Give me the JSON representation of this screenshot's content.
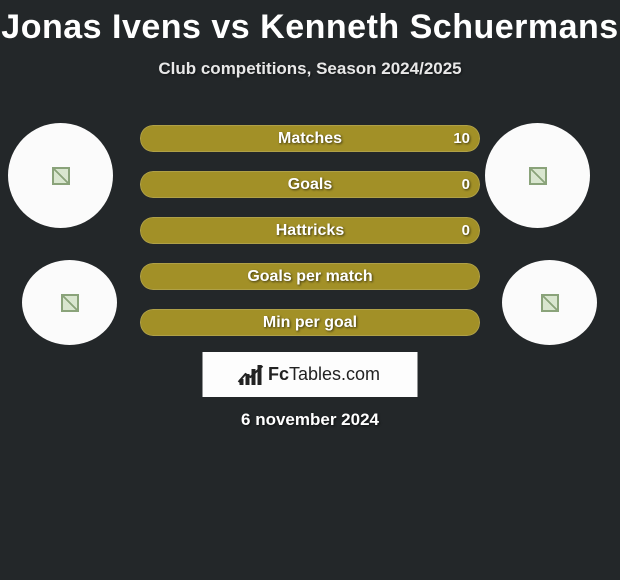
{
  "title": "Jonas Ivens vs Kenneth Schuermans",
  "subtitle": "Club competitions, Season 2024/2025",
  "date": "6 november 2024",
  "logo": {
    "prefix": "Fc",
    "suffix": "Tables.com"
  },
  "background_color": "#232729",
  "avatar_bg": "#fbfbfb",
  "stats": [
    {
      "label": "Matches",
      "value_right": "10",
      "fill_pct": 100,
      "fill_color": "#a29027"
    },
    {
      "label": "Goals",
      "value_right": "0",
      "fill_pct": 100,
      "fill_color": "#a29027"
    },
    {
      "label": "Hattricks",
      "value_right": "0",
      "fill_pct": 100,
      "fill_color": "#a29027"
    },
    {
      "label": "Goals per match",
      "value_right": "",
      "fill_pct": 100,
      "fill_color": "#a29027"
    },
    {
      "label": "Min per goal",
      "value_right": "",
      "fill_pct": 100,
      "fill_color": "#a29027"
    }
  ],
  "typography": {
    "title_fontsize": 34,
    "subtitle_fontsize": 17,
    "bar_label_fontsize": 16,
    "date_fontsize": 17
  }
}
